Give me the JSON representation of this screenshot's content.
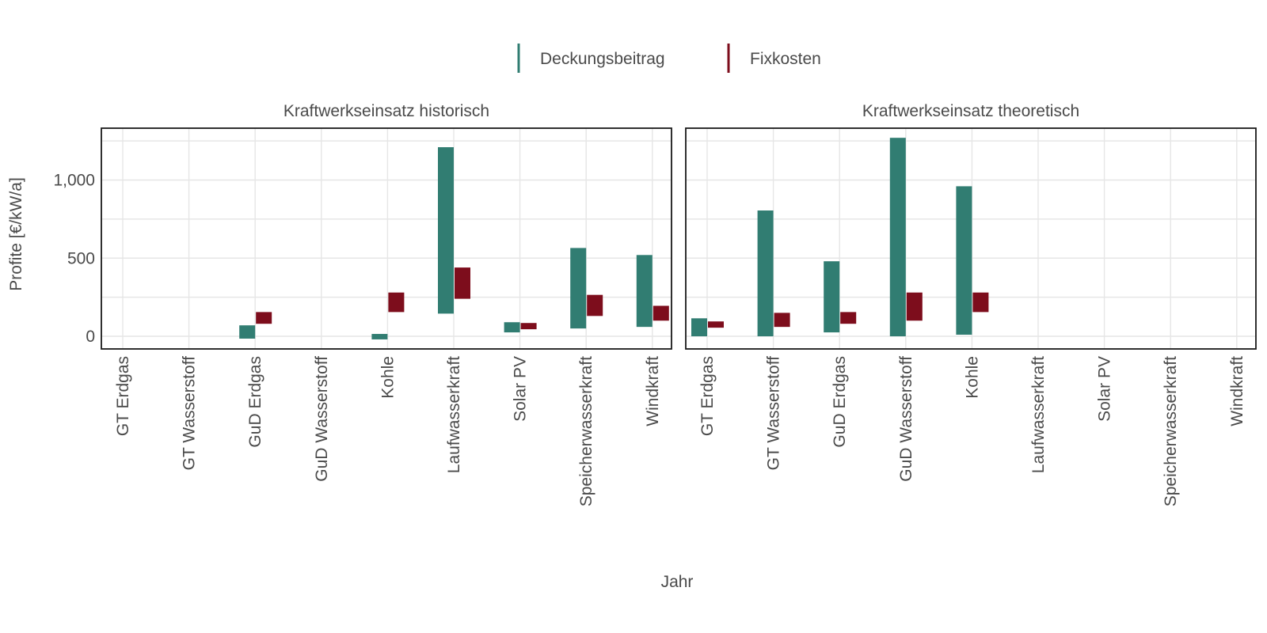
{
  "chart_data": {
    "type": "bar",
    "subtype": "floating-range-bar",
    "xlabel": "Jahr",
    "ylabel": "Profite [€/kW/a]",
    "ylim": [
      -80,
      1330
    ],
    "yticks": [
      0,
      500,
      1000
    ],
    "ytick_labels": [
      "0",
      "500",
      "1,000"
    ],
    "grid": true,
    "legend_position": "top",
    "colors": {
      "Deckungsbeitrag": "#317d72",
      "Fixkosten": "#7d0d1c"
    },
    "categories": [
      "GT Erdgas",
      "GT Wasserstoff",
      "GuD Erdgas",
      "GuD Wasserstoff",
      "Kohle",
      "Laufwasserkraft",
      "Solar PV",
      "Speicherwasserkraft",
      "Windkraft"
    ],
    "legend": [
      {
        "name": "Deckungsbeitrag",
        "color": "#317d72"
      },
      {
        "name": "Fixkosten",
        "color": "#7d0d1c"
      }
    ],
    "panels": [
      {
        "title": "Kraftwerkseinsatz historisch",
        "series": [
          {
            "name": "Deckungsbeitrag",
            "ranges": [
              null,
              null,
              [
                -15,
                70
              ],
              null,
              [
                -20,
                15
              ],
              [
                145,
                1210
              ],
              [
                25,
                90
              ],
              [
                50,
                565
              ],
              [
                60,
                520
              ]
            ]
          },
          {
            "name": "Fixkosten",
            "ranges": [
              null,
              null,
              [
                80,
                155
              ],
              null,
              [
                155,
                280
              ],
              [
                240,
                440
              ],
              [
                45,
                85
              ],
              [
                130,
                265
              ],
              [
                100,
                195
              ]
            ]
          }
        ]
      },
      {
        "title": "Kraftwerkseinsatz theoretisch",
        "series": [
          {
            "name": "Deckungsbeitrag",
            "ranges": [
              [
                0,
                115
              ],
              [
                0,
                805
              ],
              [
                25,
                480
              ],
              [
                0,
                1270
              ],
              [
                10,
                960
              ],
              null,
              null,
              null,
              null
            ]
          },
          {
            "name": "Fixkosten",
            "ranges": [
              [
                55,
                95
              ],
              [
                60,
                150
              ],
              [
                80,
                155
              ],
              [
                100,
                280
              ],
              [
                155,
                280
              ],
              null,
              null,
              null,
              null
            ]
          }
        ]
      }
    ]
  }
}
